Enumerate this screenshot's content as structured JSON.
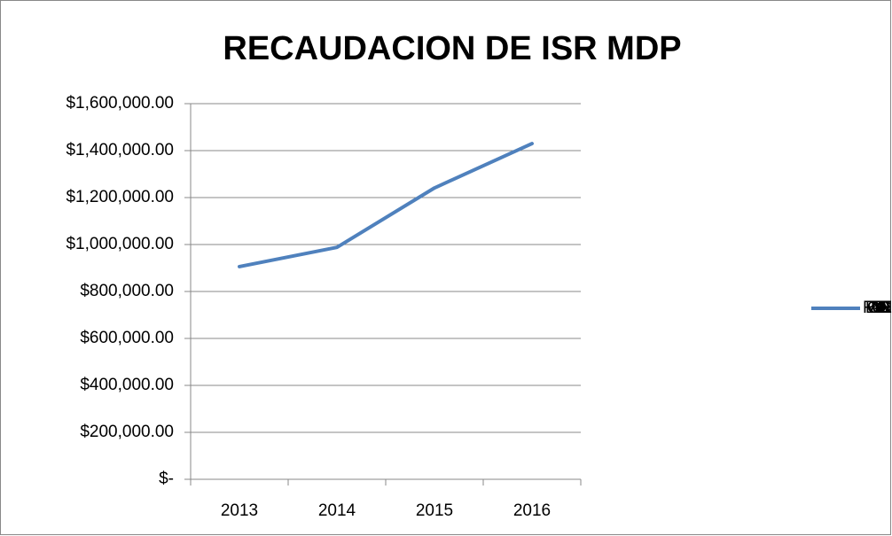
{
  "chart_data": {
    "type": "line",
    "title": "RECAUDACION DE ISR MDP",
    "categories": [
      "2013",
      "2014",
      "2015",
      "2016"
    ],
    "series": [
      {
        "name": "RECAUDACION DE ISR",
        "color": "#4f81bd",
        "values": [
          906000,
          988000,
          1241000,
          1430000
        ]
      }
    ],
    "ylim": [
      0,
      1600000
    ],
    "yticks": [
      {
        "value": 0,
        "label": "$-"
      },
      {
        "value": 200000,
        "label": "$200,000.00"
      },
      {
        "value": 400000,
        "label": "$400,000.00"
      },
      {
        "value": 600000,
        "label": "$600,000.00"
      },
      {
        "value": 800000,
        "label": "$800,000.00"
      },
      {
        "value": 1000000,
        "label": "$1,000,000.00"
      },
      {
        "value": 1200000,
        "label": "$1,200,000.00"
      },
      {
        "value": 1400000,
        "label": "$1,400,000.00"
      },
      {
        "value": 1600000,
        "label": "$1,600,000.00"
      }
    ],
    "grid": true,
    "legend": "right"
  }
}
